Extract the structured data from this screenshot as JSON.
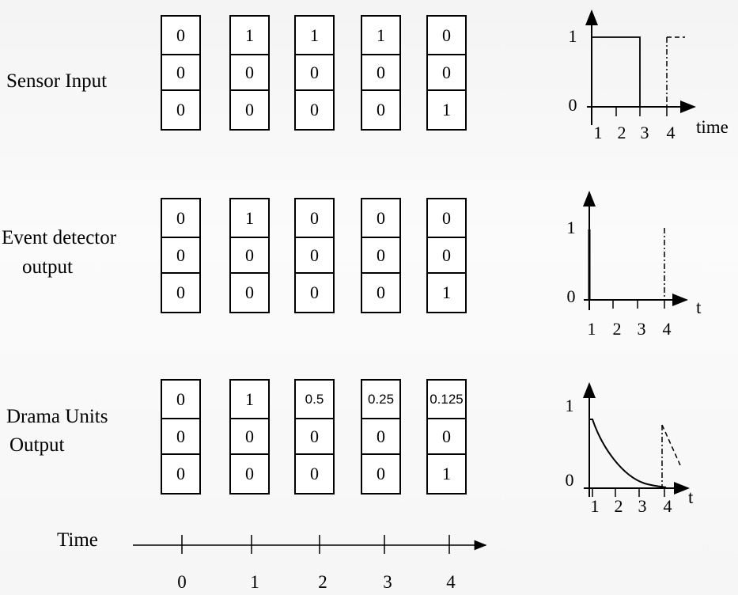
{
  "rows": [
    {
      "label_lines": [
        "Sensor Input"
      ],
      "columns": [
        [
          "0",
          "0",
          "0"
        ],
        [
          "1",
          "0",
          "0"
        ],
        [
          "1",
          "0",
          "0"
        ],
        [
          "1",
          "0",
          "0"
        ],
        [
          "0",
          "0",
          "1"
        ]
      ]
    },
    {
      "label_lines": [
        "Event detector",
        "output"
      ],
      "columns": [
        [
          "0",
          "0",
          "0"
        ],
        [
          "1",
          "0",
          "0"
        ],
        [
          "0",
          "0",
          "0"
        ],
        [
          "0",
          "0",
          "0"
        ],
        [
          "0",
          "0",
          "1"
        ]
      ]
    },
    {
      "label_lines": [
        "Drama Units",
        "Output"
      ],
      "columns": [
        [
          "0",
          "0",
          "0"
        ],
        [
          "1",
          "0",
          "0"
        ],
        [
          "0.5",
          "0",
          "0"
        ],
        [
          "0.25",
          "0",
          "0"
        ],
        [
          "0.125",
          "0",
          "1"
        ]
      ]
    }
  ],
  "graphs": [
    {
      "y_high": "1",
      "y_low": "0",
      "x_ticks": [
        "1",
        "2",
        "3",
        "4"
      ],
      "x_label": "time",
      "signal": "step"
    },
    {
      "y_high": "1",
      "y_low": "0",
      "x_ticks": [
        "1",
        "2",
        "3",
        "4"
      ],
      "x_label": "t",
      "signal": "impulse"
    },
    {
      "y_high": "1",
      "y_low": "0",
      "x_ticks": [
        "1",
        "2",
        "3",
        "4"
      ],
      "x_label": "t",
      "signal": "decay"
    }
  ],
  "timeline": {
    "label": "Time",
    "ticks": [
      "0",
      "1",
      "2",
      "3",
      "4"
    ]
  }
}
